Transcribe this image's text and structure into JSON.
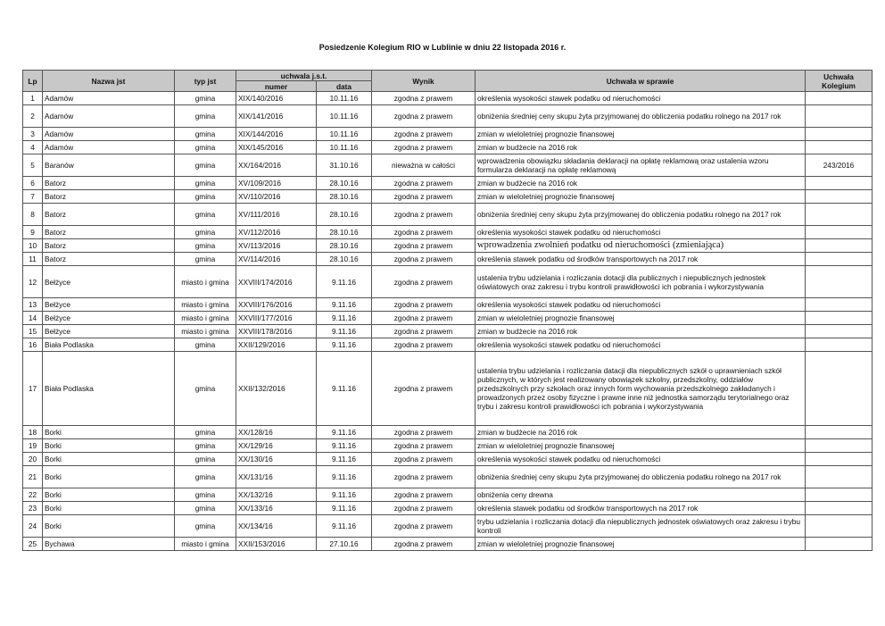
{
  "title": "Posiedzenie Kolegium RIO w Lublinie w dniu 22 listopada 2016 r.",
  "headers": {
    "lp": "Lp",
    "nazwa": "Nazwa jst",
    "typ": "typ jst",
    "uchwala_jst": "uchwala j.s.t.",
    "numer": "numer",
    "data": "data",
    "wynik": "Wynik",
    "sprawa": "Uchwała w sprawie",
    "kolegium": "Uchwała Kolegium"
  },
  "rows": [
    {
      "lp": "1",
      "nazwa": "Adamów",
      "typ": "gmina",
      "numer": "XIX/140/2016",
      "data": "10.11.16",
      "wynik": "zgodna z prawem",
      "sprawa": "określenia wysokości stawek podatku od nieruchomości",
      "kolegium": "",
      "h": 1
    },
    {
      "lp": "2",
      "nazwa": "Adamów",
      "typ": "gmina",
      "numer": "XIX/141/2016",
      "data": "10.11.16",
      "wynik": "zgodna z prawem",
      "sprawa": "obniżenia średniej ceny skupu żyta przyjmowanej do obliczenia podatku rolnego na 2017 rok",
      "kolegium": "",
      "h": 2
    },
    {
      "lp": "3",
      "nazwa": "Adamów",
      "typ": "gmina",
      "numer": "XIX/144/2016",
      "data": "10.11.16",
      "wynik": "zgodna z prawem",
      "sprawa": "zmian w wieloletniej prognozie finansowej",
      "kolegium": "",
      "h": 1
    },
    {
      "lp": "4",
      "nazwa": "Adamów",
      "typ": "gmina",
      "numer": "XIX/145/2016",
      "data": "10.11.16",
      "wynik": "zgodna z prawem",
      "sprawa": "zmian w budżecie na 2016 rok",
      "kolegium": "",
      "h": 1
    },
    {
      "lp": "5",
      "nazwa": "Baranów",
      "typ": "gmina",
      "numer": "XX/164/2016",
      "data": "31.10.16",
      "wynik": "nieważna w całości",
      "sprawa": "wprowadzenia obowiązku składania deklaracji na opłatę reklamową oraz ustalenia wzoru formularza deklaracji na opłatę reklamową",
      "kolegium": "243/2016",
      "h": 2
    },
    {
      "lp": "6",
      "nazwa": "Batorz",
      "typ": "gmina",
      "numer": "XV/109/2016",
      "data": "28.10.16",
      "wynik": "zgodna z prawem",
      "sprawa": "zmian w budżecie na 2016 rok",
      "kolegium": "",
      "h": 1
    },
    {
      "lp": "7",
      "nazwa": "Batorz",
      "typ": "gmina",
      "numer": "XV/110/2016",
      "data": "28.10.16",
      "wynik": "zgodna z prawem",
      "sprawa": "zmian w wieloletniej prognozie finansowej",
      "kolegium": "",
      "h": 1
    },
    {
      "lp": "8",
      "nazwa": "Batorz",
      "typ": "gmina",
      "numer": "XV/111/2016",
      "data": "28.10.16",
      "wynik": "zgodna z prawem",
      "sprawa": "obniżenia średniej ceny skupu żyta przyjmowanej do obliczenia podatku rolnego na 2017 rok",
      "kolegium": "",
      "h": 2
    },
    {
      "lp": "9",
      "nazwa": "Batorz",
      "typ": "gmina",
      "numer": "XV/112/2016",
      "data": "28.10.16",
      "wynik": "zgodna z prawem",
      "sprawa": "określenia wysokości stawek podatku od nieruchomości",
      "kolegium": "",
      "h": 1
    },
    {
      "lp": "10",
      "nazwa": "Batorz",
      "typ": "gmina",
      "numer": "XV/113/2016",
      "data": "28.10.16",
      "wynik": "zgodna z prawem",
      "sprawa": "wprowadzenia zwolnień podatku od nieruchomości (zmieniająca)",
      "kolegium": "",
      "h": 1,
      "serif": true
    },
    {
      "lp": "11",
      "nazwa": "Batorz",
      "typ": "gmina",
      "numer": "XV/114/2016",
      "data": "28.10.16",
      "wynik": "zgodna z prawem",
      "sprawa": "określenia stawek podatku od środków transportowych na 2017 rok",
      "kolegium": "",
      "h": 1
    },
    {
      "lp": "12",
      "nazwa": "Bełżyce",
      "typ": "miasto i gmina",
      "numer": "XXVIII/174/2016",
      "data": "9.11.16",
      "wynik": "zgodna z prawem",
      "sprawa": "ustalenia trybu udzielania i rozliczania dotacji dla publicznych i niepublicznych jednostek oświatowych oraz zakresu i trybu kontroli prawidłowości ich pobrania i wykorzystywania",
      "kolegium": "",
      "h": 3
    },
    {
      "lp": "13",
      "nazwa": "Bełżyce",
      "typ": "miasto i gmina",
      "numer": "XXVIII/176/2016",
      "data": "9.11.16",
      "wynik": "zgodna z prawem",
      "sprawa": "określenia wysokości stawek podatku od nieruchomości",
      "kolegium": "",
      "h": 1
    },
    {
      "lp": "14",
      "nazwa": "Bełżyce",
      "typ": "miasto i gmina",
      "numer": "XXVIII/177/2016",
      "data": "9.11.16",
      "wynik": "zgodna z prawem",
      "sprawa": "zmian w wieloletniej prognozie finansowej",
      "kolegium": "",
      "h": 1
    },
    {
      "lp": "15",
      "nazwa": "Bełżyce",
      "typ": "miasto i gmina",
      "numer": "XXVIII/178/2016",
      "data": "9.11.16",
      "wynik": "zgodna z prawem",
      "sprawa": "zmian w budżecie na 2016 rok",
      "kolegium": "",
      "h": 1
    },
    {
      "lp": "16",
      "nazwa": "Biała Podlaska",
      "typ": "gmina",
      "numer": "XXII/129/2016",
      "data": "9.11.16",
      "wynik": "zgodna z prawem",
      "sprawa": "określenia wysokości stawek podatku od nieruchomości",
      "kolegium": "",
      "h": 1
    },
    {
      "lp": "17",
      "nazwa": "Biała Podlaska",
      "typ": "gmina",
      "numer": "XXII/132/2016",
      "data": "9.11.16",
      "wynik": "zgodna z prawem",
      "sprawa": "ustalenia trybu udzielania i rozliczania datacji dla niepublicznych szkół o uprawnieniach szkół publicznych, w których jest realizowany obowiązek szkolny, przedszkolny, oddziałów przedszkolnych przy szkołach oraz innych form wychowania przedszkolnego zakładanych i prowadzonych przez osoby fizyczne i prawne inne niż jednostka samorządu terytorialnego oraz trybu i zakresu kontroli prawidłowości ich pobrania i wykorzystywania",
      "kolegium": "",
      "h": 6
    },
    {
      "lp": "18",
      "nazwa": "Borki",
      "typ": "gmina",
      "numer": "XX/128/16",
      "data": "9.11.16",
      "wynik": "zgodna z prawem",
      "sprawa": "zmian w budżecie na 2016 rok",
      "kolegium": "",
      "h": 1
    },
    {
      "lp": "19",
      "nazwa": "Borki",
      "typ": "gmina",
      "numer": "XX/129/16",
      "data": "9.11.16",
      "wynik": "zgodna z prawem",
      "sprawa": "zmian w wieloletniej prognozie finansowej",
      "kolegium": "",
      "h": 1
    },
    {
      "lp": "20",
      "nazwa": "Borki",
      "typ": "gmina",
      "numer": "XX/130/16",
      "data": "9.11.16",
      "wynik": "zgodna z prawem",
      "sprawa": "określenia wysokości stawek podatku od nieruchomości",
      "kolegium": "",
      "h": 1
    },
    {
      "lp": "21",
      "nazwa": "Borki",
      "typ": "gmina",
      "numer": "XX/131/16",
      "data": "9.11.16",
      "wynik": "zgodna z prawem",
      "sprawa": "obniżenia średniej ceny skupu żyta przyjmowanej do obliczenia podatku rolnego na 2017 rok",
      "kolegium": "",
      "h": 2
    },
    {
      "lp": "22",
      "nazwa": "Borki",
      "typ": "gmina",
      "numer": "XX/132/16",
      "data": "9.11.16",
      "wynik": "zgodna z prawem",
      "sprawa": "obniżenia ceny drewna",
      "kolegium": "",
      "h": 1
    },
    {
      "lp": "23",
      "nazwa": "Borki",
      "typ": "gmina",
      "numer": "XX/133/16",
      "data": "9.11.16",
      "wynik": "zgodna z prawem",
      "sprawa": "określenia stawek podatku od środków transportowych na 2017 rok",
      "kolegium": "",
      "h": 1
    },
    {
      "lp": "24",
      "nazwa": "Borki",
      "typ": "gmina",
      "numer": "XX/134/16",
      "data": "9.11.16",
      "wynik": "zgodna z prawem",
      "sprawa": "trybu udzielania i rozliczania dotacji dla niepublicznych jednostek oświatowych oraz zakresu i trybu kontroli",
      "kolegium": "",
      "h": 2
    },
    {
      "lp": "25",
      "nazwa": "Bychawa",
      "typ": "miasto i gmina",
      "numer": "XXII/153/2016",
      "data": "27.10.16",
      "wynik": "zgodna z prawem",
      "sprawa": "zmian w wieloletniej prognozie finansowej",
      "kolegium": "",
      "h": 1
    }
  ]
}
